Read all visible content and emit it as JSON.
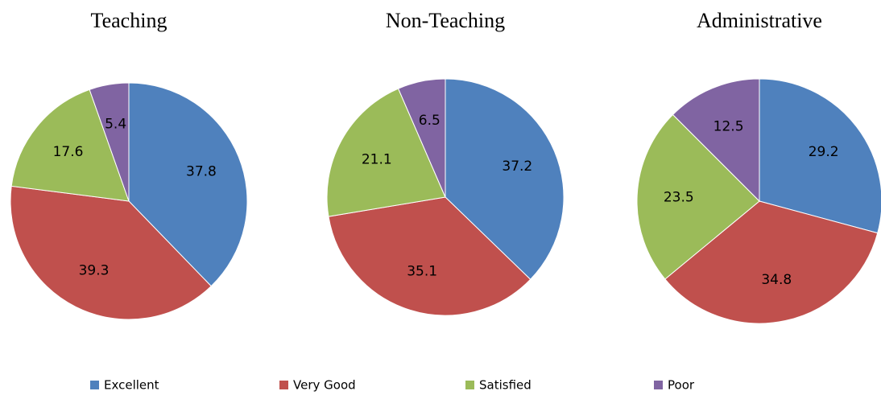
{
  "chart_data": [
    {
      "type": "pie",
      "title": "Teaching",
      "categories": [
        "Excellent",
        "Very Good",
        "Satisfied",
        "Poor"
      ],
      "values": [
        37.8,
        39.3,
        17.6,
        5.4
      ],
      "colors": [
        "#4f81bd",
        "#c0504d",
        "#9bbb59",
        "#8064a2"
      ]
    },
    {
      "type": "pie",
      "title": "Non-Teaching",
      "categories": [
        "Excellent",
        "Very Good",
        "Satisfied",
        "Poor"
      ],
      "values": [
        37.2,
        35.1,
        21.1,
        6.5
      ],
      "colors": [
        "#4f81bd",
        "#c0504d",
        "#9bbb59",
        "#8064a2"
      ]
    },
    {
      "type": "pie",
      "title": "Administrative",
      "categories": [
        "Excellent",
        "Very Good",
        "Satisfied",
        "Poor"
      ],
      "values": [
        29.2,
        34.8,
        23.5,
        12.5
      ],
      "colors": [
        "#4f81bd",
        "#c0504d",
        "#9bbb59",
        "#8064a2"
      ]
    }
  ]
}
